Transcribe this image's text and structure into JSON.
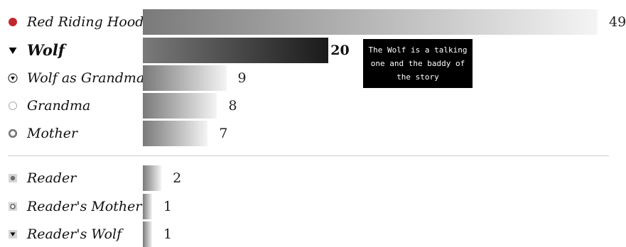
{
  "chart_data": {
    "type": "bar",
    "orientation": "horizontal",
    "max": 49,
    "groups": [
      {
        "rows": [
          {
            "label": "Red Riding Hood",
            "value": 49,
            "marker": "red-filled-circle"
          },
          {
            "label": "Wolf",
            "value": 20,
            "marker": "black-down-triangle",
            "highlighted": true
          },
          {
            "label": "Wolf as Grandma",
            "value": 9,
            "marker": "circled-down-triangle"
          },
          {
            "label": "Grandma",
            "value": 8,
            "marker": "hollow-circle"
          },
          {
            "label": "Mother",
            "value": 7,
            "marker": "thick-ring"
          }
        ]
      },
      {
        "rows": [
          {
            "label": "Reader",
            "value": 2,
            "marker": "square-with-dot"
          },
          {
            "label": "Reader's Mother",
            "value": 1,
            "marker": "square-with-ring"
          },
          {
            "label": "Reader's Wolf",
            "value": 1,
            "marker": "square-with-triangle"
          }
        ]
      }
    ],
    "tooltip": {
      "lines": [
        "The Wolf is a talking",
        "one and the baddy of",
        "the story"
      ]
    },
    "colors": {
      "accent_red": "#c0282e",
      "bar_dark": "#1a1a1a",
      "bar_mid": "#7a7a7a",
      "bar_light": "#f4f4f4"
    }
  }
}
